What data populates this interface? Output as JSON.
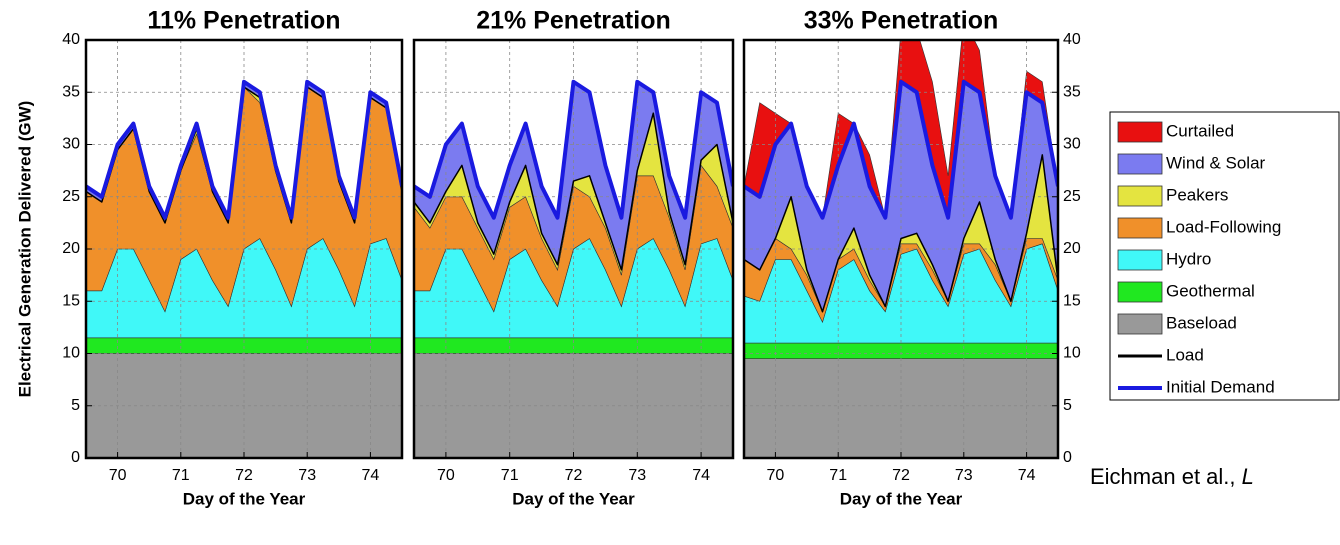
{
  "ylabel": "Electrical Generation Delivered (GW)",
  "source": "Eichman et al., ",
  "source_italic": "L",
  "legend": [
    {
      "name": "Curtailed",
      "color": "#e81010",
      "kind": "area"
    },
    {
      "name": "Wind & Solar",
      "color": "#7b7bf0",
      "kind": "area"
    },
    {
      "name": "Peakers",
      "color": "#e4e440",
      "kind": "area"
    },
    {
      "name": "Load-Following",
      "color": "#f0902a",
      "kind": "area"
    },
    {
      "name": "Hydro",
      "color": "#40f8f8",
      "kind": "area"
    },
    {
      "name": "Geothermal",
      "color": "#20e820",
      "kind": "area"
    },
    {
      "name": "Baseload",
      "color": "#999999",
      "kind": "area"
    },
    {
      "name": "Load",
      "color": "#000000",
      "kind": "line"
    },
    {
      "name": "Initial Demand",
      "color": "#1a1ae0",
      "kind": "line"
    }
  ],
  "chart_data": [
    {
      "type": "area",
      "title": "11% Penetration",
      "xlabel": "Day of the Year",
      "x": [
        69.5,
        69.75,
        70,
        70.25,
        70.5,
        70.75,
        71,
        71.25,
        71.5,
        71.75,
        72,
        72.25,
        72.5,
        72.75,
        73,
        73.25,
        73.5,
        73.75,
        74,
        74.25,
        74.5
      ],
      "xlim": [
        69.5,
        74.5
      ],
      "xticks": [
        70,
        71,
        72,
        73,
        74
      ],
      "ylim": [
        0,
        40
      ],
      "yticks": [
        0,
        5,
        10,
        15,
        20,
        25,
        30,
        35,
        40
      ],
      "grid": true,
      "ytick_side": "left",
      "series": [
        {
          "values": [
            0,
            0,
            0,
            0,
            0,
            0,
            0,
            0,
            0,
            0,
            0,
            0,
            0,
            0,
            0,
            0,
            0,
            0,
            0,
            0,
            0
          ]
        },
        {
          "values": [
            0.5,
            0.5,
            0.5,
            0.5,
            0.5,
            0.5,
            0.5,
            0.5,
            0.5,
            0.5,
            0.5,
            0.5,
            0.5,
            0.5,
            0.5,
            0.5,
            0.5,
            0.5,
            0.5,
            0.5,
            0.5
          ]
        },
        {
          "values": [
            0,
            0,
            0,
            0,
            0,
            0,
            0,
            0.5,
            0,
            0,
            0,
            0.5,
            0,
            0,
            0,
            0,
            0,
            0,
            0,
            0,
            0
          ]
        },
        {
          "values": [
            9.5,
            8.5,
            9.5,
            11.5,
            8.5,
            8.5,
            8.5,
            11,
            8.5,
            8,
            15.5,
            13,
            9.5,
            8,
            15.5,
            13.5,
            8.5,
            8,
            14,
            12.5,
            8.5
          ]
        },
        {
          "values": [
            4.5,
            4.5,
            8.5,
            8.5,
            5.5,
            2.5,
            7.5,
            8.5,
            5.5,
            3,
            8.5,
            9.5,
            6.5,
            3,
            8.5,
            9.5,
            6.5,
            3,
            9,
            9.5,
            5.5
          ]
        },
        {
          "values": [
            1.5,
            1.5,
            1.5,
            1.5,
            1.5,
            1.5,
            1.5,
            1.5,
            1.5,
            1.5,
            1.5,
            1.5,
            1.5,
            1.5,
            1.5,
            1.5,
            1.5,
            1.5,
            1.5,
            1.5,
            1.5
          ]
        },
        {
          "values": [
            10,
            10,
            10,
            10,
            10,
            10,
            10,
            10,
            10,
            10,
            10,
            10,
            10,
            10,
            10,
            10,
            10,
            10,
            10,
            10,
            10
          ]
        },
        {
          "values": [
            25.5,
            24.5,
            29.5,
            31.5,
            25.5,
            22.5,
            27.5,
            31.5,
            25.5,
            22.5,
            35.5,
            34.5,
            27.5,
            22.5,
            35.5,
            34.5,
            26.5,
            22.5,
            34.5,
            33.5,
            25.5
          ]
        },
        {
          "values": [
            26,
            25,
            30,
            32,
            26,
            23,
            28,
            32,
            26,
            23,
            36,
            35,
            28,
            23,
            36,
            35,
            27,
            23,
            35,
            34,
            26
          ]
        }
      ]
    },
    {
      "type": "area",
      "title": "21% Penetration",
      "xlabel": "Day of the Year",
      "x": [
        69.5,
        69.75,
        70,
        70.25,
        70.5,
        70.75,
        71,
        71.25,
        71.5,
        71.75,
        72,
        72.25,
        72.5,
        72.75,
        73,
        73.25,
        73.5,
        73.75,
        74,
        74.25,
        74.5
      ],
      "xlim": [
        69.5,
        74.5
      ],
      "xticks": [
        70,
        71,
        72,
        73,
        74
      ],
      "ylim": [
        0,
        40
      ],
      "yticks": [
        0,
        5,
        10,
        15,
        20,
        25,
        30,
        35,
        40
      ],
      "grid": true,
      "ytick_side": "none",
      "series": [
        {
          "values": [
            0,
            0,
            0,
            0,
            0,
            0,
            0,
            0,
            0,
            0,
            0,
            0,
            0,
            0,
            0,
            0,
            0,
            0,
            0,
            0,
            0
          ]
        },
        {
          "values": [
            1.5,
            2.5,
            4.5,
            4,
            3.5,
            3.5,
            3.5,
            4,
            4.5,
            4.5,
            9.5,
            8,
            5.5,
            5,
            8.5,
            2,
            3.5,
            4.5,
            6.5,
            4,
            3.5
          ]
        },
        {
          "values": [
            0.5,
            0.5,
            0.5,
            3,
            0.5,
            0.5,
            0.5,
            3,
            0.5,
            0.5,
            0.5,
            2,
            0.5,
            0.5,
            0.5,
            6,
            0.5,
            0.5,
            0.5,
            4,
            0.5
          ]
        },
        {
          "values": [
            8,
            6,
            5,
            5,
            5,
            5,
            5,
            5,
            4,
            3.5,
            6,
            4,
            4,
            3,
            7,
            6,
            5,
            3.5,
            7.5,
            5,
            5
          ]
        },
        {
          "values": [
            4.5,
            4.5,
            8.5,
            8.5,
            5.5,
            2.5,
            7.5,
            8.5,
            5.5,
            3,
            8.5,
            9.5,
            6.5,
            3,
            8.5,
            9.5,
            6.5,
            3,
            9,
            9.5,
            5.5
          ]
        },
        {
          "values": [
            1.5,
            1.5,
            1.5,
            1.5,
            1.5,
            1.5,
            1.5,
            1.5,
            1.5,
            1.5,
            1.5,
            1.5,
            1.5,
            1.5,
            1.5,
            1.5,
            1.5,
            1.5,
            1.5,
            1.5,
            1.5
          ]
        },
        {
          "values": [
            10,
            10,
            10,
            10,
            10,
            10,
            10,
            10,
            10,
            10,
            10,
            10,
            10,
            10,
            10,
            10,
            10,
            10,
            10,
            10,
            10
          ]
        },
        {
          "values": [
            24.5,
            22.5,
            25.5,
            28,
            22.5,
            19.5,
            24.5,
            28,
            21.5,
            18.5,
            26.5,
            27,
            22.5,
            18,
            27.5,
            33,
            23.5,
            18.5,
            28.5,
            30,
            22.5
          ]
        },
        {
          "values": [
            26,
            25,
            30,
            32,
            26,
            23,
            28,
            32,
            26,
            23,
            36,
            35,
            28,
            23,
            36,
            35,
            27,
            23,
            35,
            34,
            26
          ]
        }
      ]
    },
    {
      "type": "area",
      "title": "33% Penetration",
      "xlabel": "Day of the Year",
      "x": [
        69.5,
        69.75,
        70,
        70.25,
        70.5,
        70.75,
        71,
        71.25,
        71.5,
        71.75,
        72,
        72.25,
        72.5,
        72.75,
        73,
        73.25,
        73.5,
        73.75,
        74,
        74.25,
        74.5
      ],
      "xlim": [
        69.5,
        74.5
      ],
      "xticks": [
        70,
        71,
        72,
        73,
        74
      ],
      "ylim": [
        0,
        40
      ],
      "yticks": [
        0,
        5,
        10,
        15,
        20,
        25,
        30,
        35,
        40
      ],
      "grid": true,
      "ytick_side": "right",
      "series": [
        {
          "values": [
            0,
            9,
            3,
            0,
            0,
            0,
            5,
            0,
            3,
            0,
            5,
            6,
            8,
            4,
            6,
            4,
            0,
            0,
            2,
            2,
            0
          ]
        },
        {
          "values": [
            7,
            7,
            9,
            7,
            8,
            9,
            9,
            10,
            8.5,
            8.5,
            15,
            13.5,
            9.5,
            8,
            15,
            10.5,
            8,
            8,
            13.5,
            5,
            9
          ]
        },
        {
          "values": [
            0,
            0,
            0,
            5,
            0.5,
            0,
            0,
            2,
            0.5,
            0,
            0.5,
            1,
            0.5,
            0,
            0.5,
            4,
            0.5,
            0,
            0.5,
            8,
            0
          ]
        },
        {
          "values": [
            3.5,
            3,
            2,
            1,
            1.5,
            1,
            1,
            1,
            1,
            0.5,
            1,
            0.5,
            1,
            0.5,
            1,
            0.5,
            1.5,
            0.5,
            1,
            0.5,
            1
          ]
        },
        {
          "values": [
            4.5,
            4,
            8,
            8,
            5,
            2,
            7,
            8,
            5,
            3,
            8.5,
            9,
            6,
            3.5,
            8.5,
            9,
            6,
            3.5,
            9,
            9.5,
            5
          ]
        },
        {
          "values": [
            1.5,
            1.5,
            1.5,
            1.5,
            1.5,
            1.5,
            1.5,
            1.5,
            1.5,
            1.5,
            1.5,
            1.5,
            1.5,
            1.5,
            1.5,
            1.5,
            1.5,
            1.5,
            1.5,
            1.5,
            1.5
          ]
        },
        {
          "values": [
            9.5,
            9.5,
            9.5,
            9.5,
            9.5,
            9.5,
            9.5,
            9.5,
            9.5,
            9.5,
            9.5,
            9.5,
            9.5,
            9.5,
            9.5,
            9.5,
            9.5,
            9.5,
            9.5,
            9.5,
            9.5
          ]
        },
        {
          "values": [
            19,
            18,
            21,
            25,
            18,
            14,
            19,
            22,
            17.5,
            14.5,
            21,
            21.5,
            18.5,
            15,
            21,
            24.5,
            19,
            15,
            21.5,
            29,
            17
          ]
        },
        {
          "values": [
            26,
            25,
            30,
            32,
            26,
            23,
            28,
            32,
            26,
            23,
            36,
            35,
            28,
            23,
            36,
            35,
            27,
            23,
            35,
            34,
            26
          ]
        }
      ]
    }
  ]
}
